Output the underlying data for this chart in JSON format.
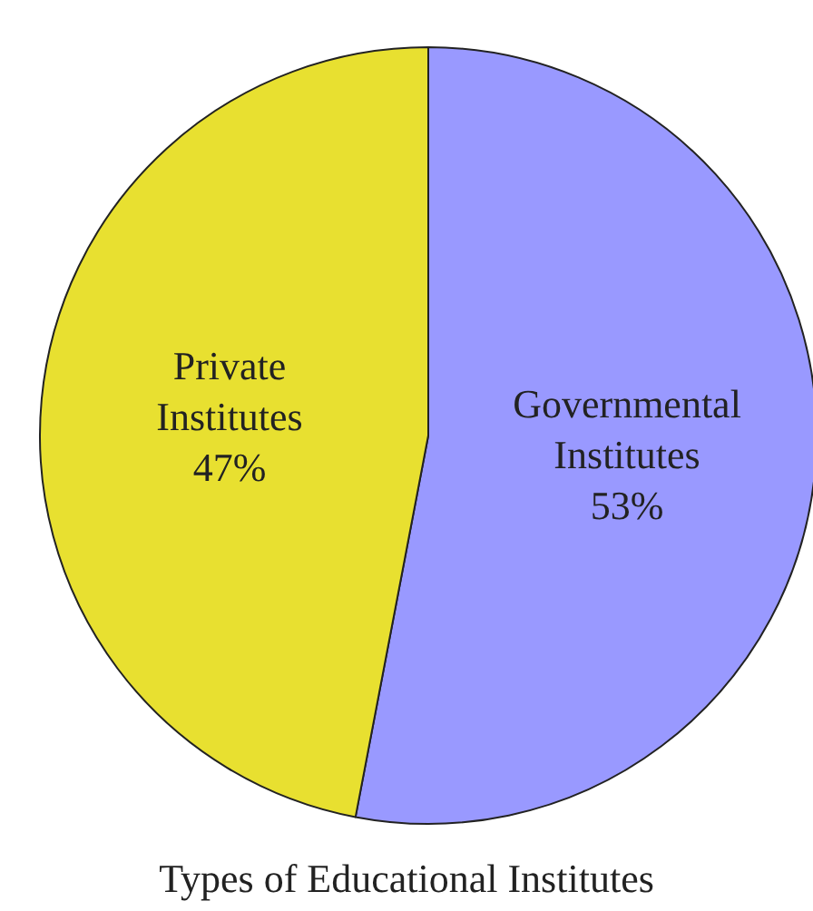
{
  "chart_data": {
    "type": "pie",
    "title": "Types of Educational Institutes",
    "categories": [
      "Governmental Institutes",
      "Private Institutes"
    ],
    "values": [
      53,
      47
    ],
    "colors": [
      "#9999ff",
      "#e8e030"
    ],
    "value_labels": [
      "53%",
      "47%"
    ]
  }
}
